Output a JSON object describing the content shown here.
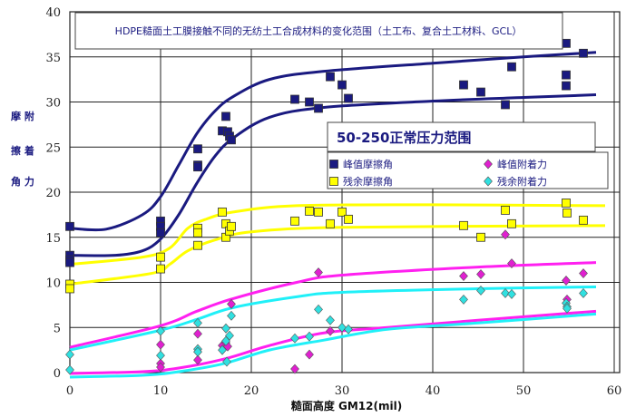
{
  "chart_data": {
    "type": "scatter",
    "title": "HDPE糙面土工膜接触不同的无纺土工合成材料的变化范围（土工布、复合土工材料、GCL）",
    "annotation": "50-250正常压力范围",
    "xlabel": "糙面高度 GM12(mil)",
    "ylabel_rows": [
      "摩 附",
      "擦 着",
      "角 力"
    ],
    "xlim": [
      0,
      60
    ],
    "ylim": [
      0,
      40
    ],
    "xticks": [
      "0",
      "10",
      "20",
      "30",
      "40",
      "50",
      "60"
    ],
    "yticks": [
      "0",
      "5",
      "10",
      "15",
      "20",
      "25",
      "30",
      "35",
      "40"
    ],
    "grid": true,
    "legend_placement": "right-middle",
    "series": [
      {
        "name": "峰值摩擦角",
        "marker": "square",
        "color": "#1a1a80",
        "points": [
          [
            0,
            16.2
          ],
          [
            0,
            13
          ],
          [
            0,
            12.5
          ],
          [
            0,
            12.2
          ],
          [
            10,
            16.8
          ],
          [
            10,
            16.2
          ],
          [
            10,
            15.5
          ],
          [
            14.1,
            24.8
          ],
          [
            14.1,
            23
          ],
          [
            14.1,
            22.8
          ],
          [
            16.8,
            26.8
          ],
          [
            17.2,
            28.4
          ],
          [
            17.4,
            26.7
          ],
          [
            17.6,
            26.2
          ],
          [
            17.8,
            25.8
          ],
          [
            24.8,
            30.3
          ],
          [
            26.4,
            30
          ],
          [
            27.4,
            29.3
          ],
          [
            28.7,
            32.8
          ],
          [
            30,
            31.9
          ],
          [
            30.7,
            30.4
          ],
          [
            43.4,
            31.9
          ],
          [
            45.3,
            31.1
          ],
          [
            48,
            29.7
          ],
          [
            48.7,
            33.9
          ],
          [
            54.7,
            31.8
          ],
          [
            54.7,
            33
          ],
          [
            54.7,
            36.5
          ],
          [
            56.6,
            35.4
          ]
        ]
      },
      {
        "name": "残余摩擦角",
        "marker": "square",
        "color": "#ffff00",
        "points": [
          [
            0,
            9.8
          ],
          [
            0,
            9.3
          ],
          [
            10,
            12.8
          ],
          [
            10,
            11.5
          ],
          [
            14.1,
            16
          ],
          [
            14.1,
            15.5
          ],
          [
            14.1,
            14.1
          ],
          [
            16.8,
            17.8
          ],
          [
            17.2,
            16.5
          ],
          [
            17.2,
            15
          ],
          [
            17.6,
            15.7
          ],
          [
            17.8,
            16.2
          ],
          [
            24.8,
            16.8
          ],
          [
            26.4,
            17.9
          ],
          [
            27.4,
            17.8
          ],
          [
            28.7,
            16.5
          ],
          [
            30,
            17.8
          ],
          [
            30.7,
            17
          ],
          [
            43.4,
            16.3
          ],
          [
            45.3,
            15
          ],
          [
            48,
            18
          ],
          [
            48.7,
            16.5
          ],
          [
            54.7,
            18.8
          ],
          [
            54.8,
            17.7
          ],
          [
            56.6,
            16.9
          ]
        ]
      },
      {
        "name": "峰值附着力",
        "marker": "diamond",
        "color": "#e020d0",
        "points": [
          [
            10,
            3.1
          ],
          [
            10,
            1
          ],
          [
            10,
            0.6
          ],
          [
            14.1,
            4.3
          ],
          [
            14.1,
            1.4
          ],
          [
            16.8,
            3
          ],
          [
            17.2,
            3.3
          ],
          [
            17.4,
            2.9
          ],
          [
            17.8,
            7.6
          ],
          [
            24.8,
            0.4
          ],
          [
            26.4,
            2
          ],
          [
            27.4,
            11.1
          ],
          [
            28.7,
            4.6
          ],
          [
            43.4,
            10.7
          ],
          [
            45.3,
            10.9
          ],
          [
            48,
            15.3
          ],
          [
            48.7,
            12.1
          ],
          [
            54.7,
            10.2
          ],
          [
            54.8,
            8.1
          ],
          [
            56.6,
            11
          ]
        ]
      },
      {
        "name": "残余附着力",
        "marker": "diamond",
        "color": "#30e0e0",
        "points": [
          [
            0,
            2
          ],
          [
            0,
            0.3
          ],
          [
            10,
            4.6
          ],
          [
            10,
            1.9
          ],
          [
            14.1,
            5.5
          ],
          [
            14.1,
            2.6
          ],
          [
            14.1,
            2.3
          ],
          [
            16.8,
            2.5
          ],
          [
            17.2,
            3.5
          ],
          [
            17.2,
            4.9
          ],
          [
            17.6,
            4.1
          ],
          [
            17.8,
            6.3
          ],
          [
            17.3,
            1.2
          ],
          [
            24.8,
            3.8
          ],
          [
            26.4,
            4
          ],
          [
            27.4,
            7
          ],
          [
            28.7,
            5.8
          ],
          [
            30,
            5
          ],
          [
            30.7,
            4.8
          ],
          [
            43.4,
            8.1
          ],
          [
            45.3,
            9.1
          ],
          [
            48,
            8.8
          ],
          [
            48.7,
            8.7
          ],
          [
            54.7,
            7.7
          ],
          [
            54.8,
            7.3
          ],
          [
            54.8,
            7.1
          ],
          [
            56.6,
            8.8
          ]
        ]
      }
    ],
    "bounds": [
      {
        "color": "#1a1a80",
        "points": [
          [
            0,
            16
          ],
          [
            4,
            15.9
          ],
          [
            8,
            17.5
          ],
          [
            10,
            19.5
          ],
          [
            12,
            23
          ],
          [
            14,
            26.5
          ],
          [
            16,
            29
          ],
          [
            18,
            30.6
          ],
          [
            22,
            32.5
          ],
          [
            28,
            33.4
          ],
          [
            40,
            34.3
          ],
          [
            50,
            35
          ],
          [
            58,
            35.5
          ]
        ]
      },
      {
        "color": "#1a1a80",
        "points": [
          [
            0,
            13
          ],
          [
            5,
            13
          ],
          [
            8,
            13.5
          ],
          [
            10,
            14.8
          ],
          [
            12,
            17.5
          ],
          [
            14,
            21
          ],
          [
            16,
            24
          ],
          [
            18,
            26
          ],
          [
            22,
            28.3
          ],
          [
            28,
            29.4
          ],
          [
            40,
            30.1
          ],
          [
            50,
            30.5
          ],
          [
            58,
            30.8
          ]
        ]
      },
      {
        "color": "#ffff00",
        "points": [
          [
            0,
            12
          ],
          [
            8,
            12.8
          ],
          [
            11,
            13.8
          ],
          [
            13,
            16
          ],
          [
            15,
            17
          ],
          [
            18,
            17.8
          ],
          [
            25,
            18.5
          ],
          [
            40,
            18.6
          ],
          [
            59,
            18.5
          ]
        ]
      },
      {
        "color": "#ffff00",
        "points": [
          [
            0,
            9.8
          ],
          [
            9,
            11
          ],
          [
            11,
            12
          ],
          [
            13,
            13.5
          ],
          [
            16,
            14.7
          ],
          [
            20,
            15.6
          ],
          [
            30,
            16.1
          ],
          [
            59,
            16.3
          ]
        ]
      },
      {
        "color": "#ff20f0",
        "points": [
          [
            0,
            2.8
          ],
          [
            10,
            5.2
          ],
          [
            14,
            6.8
          ],
          [
            18,
            8.2
          ],
          [
            25,
            10
          ],
          [
            30,
            10.8
          ],
          [
            45,
            11.7
          ],
          [
            58,
            12.2
          ]
        ]
      },
      {
        "color": "#20f0f8",
        "points": [
          [
            0,
            2.5
          ],
          [
            10,
            4.7
          ],
          [
            14,
            5.9
          ],
          [
            18,
            7.2
          ],
          [
            25,
            8.4
          ],
          [
            30,
            8.9
          ],
          [
            45,
            9.3
          ],
          [
            58,
            9.5
          ]
        ]
      },
      {
        "color": "#ff20f0",
        "points": [
          [
            0,
            -0.1
          ],
          [
            8,
            0.1
          ],
          [
            12,
            0.5
          ],
          [
            17,
            1.5
          ],
          [
            22,
            3
          ],
          [
            28,
            4.4
          ],
          [
            35,
            5
          ],
          [
            45,
            5.8
          ],
          [
            58,
            6.8
          ]
        ]
      },
      {
        "color": "#20f0f8",
        "points": [
          [
            0,
            -0.5
          ],
          [
            8,
            -0.3
          ],
          [
            12,
            0.1
          ],
          [
            17,
            1
          ],
          [
            22,
            2.5
          ],
          [
            28,
            3.6
          ],
          [
            35,
            4.8
          ],
          [
            45,
            5.5
          ],
          [
            58,
            6.5
          ]
        ]
      }
    ]
  }
}
